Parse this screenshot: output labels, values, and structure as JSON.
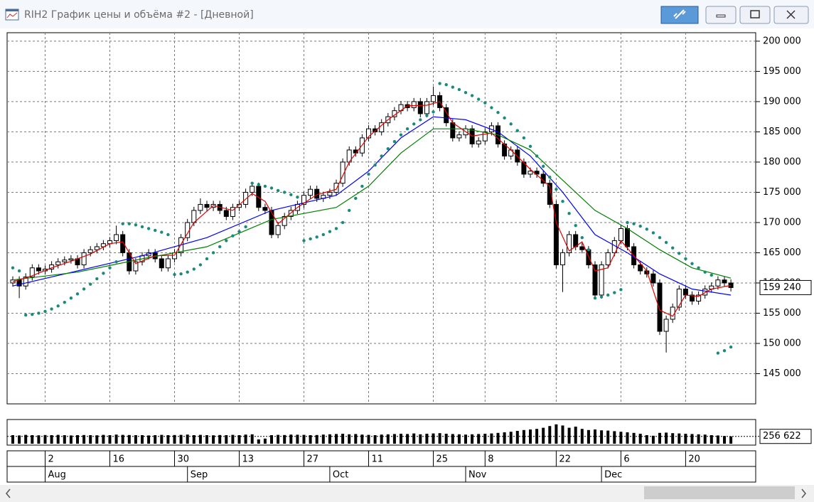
{
  "window": {
    "title": "RIH2 График цены и объёма #2 - [Дневной]"
  },
  "chart_data": {
    "type": "candlestick",
    "categories": [
      null,
      null,
      null,
      null,
      null,
      "2",
      null,
      null,
      null,
      null,
      null,
      null,
      null,
      null,
      null,
      "16",
      null,
      null,
      null,
      null,
      null,
      null,
      null,
      null,
      null,
      "30",
      null,
      null,
      null,
      null,
      null,
      null,
      null,
      null,
      null,
      "13",
      null,
      null,
      null,
      null,
      null,
      null,
      null,
      null,
      null,
      "27",
      null,
      null,
      null,
      null,
      null,
      null,
      null,
      null,
      null,
      "11",
      null,
      null,
      null,
      null,
      null,
      null,
      null,
      null,
      null,
      "25",
      null,
      null,
      null,
      null,
      null,
      null,
      null,
      "8",
      null,
      null,
      null,
      null,
      null,
      null,
      null,
      null,
      null,
      null,
      "22",
      null,
      null,
      null,
      null,
      null,
      null,
      null,
      null,
      null,
      "6",
      null,
      null,
      null,
      null,
      null,
      null,
      null,
      null,
      null,
      "20",
      null,
      null,
      null,
      null,
      null,
      null,
      null
    ],
    "month_ticks": [
      {
        "value": 5,
        "label": "Aug"
      },
      {
        "value": 27,
        "label": "Sep"
      },
      {
        "value": 49,
        "label": "Oct"
      },
      {
        "value": 70,
        "label": "Nov"
      },
      {
        "value": 91,
        "label": "Dec"
      }
    ],
    "open": [
      160000,
      160500,
      159500,
      161000,
      162500,
      162000,
      162300,
      163000,
      163500,
      163800,
      164000,
      163000,
      165000,
      165500,
      166000,
      166500,
      167000,
      168000,
      165000,
      162000,
      163500,
      164500,
      165000,
      164000,
      162500,
      164000,
      165000,
      167500,
      170000,
      172000,
      173000,
      172500,
      173000,
      172000,
      171000,
      172500,
      173000,
      175000,
      176000,
      172500,
      172000,
      168000,
      169500,
      171000,
      172000,
      173000,
      174500,
      175500,
      174000,
      174500,
      175000,
      176500,
      180000,
      182000,
      181500,
      184000,
      185500,
      185000,
      186500,
      187500,
      188500,
      189500,
      189000,
      190000,
      188000,
      190000,
      191000,
      189000,
      186500,
      184000,
      184500,
      185500,
      183000,
      183500,
      185000,
      186000,
      183000,
      181000,
      182000,
      180000,
      178000,
      178500,
      178000,
      176500,
      173000,
      163000,
      165000,
      168000,
      166000,
      165500,
      163000,
      158000,
      163000,
      165000,
      167000,
      169000,
      166000,
      163000,
      162000,
      161500,
      160000,
      152000,
      154000,
      156000,
      159000,
      158000,
      157000,
      158000,
      159000,
      159500,
      160500,
      160000
    ],
    "high": [
      161100,
      161100,
      161600,
      163100,
      163100,
      162900,
      163600,
      164100,
      164400,
      164600,
      164600,
      165600,
      166100,
      166600,
      167100,
      167600,
      169500,
      168600,
      165600,
      164100,
      165100,
      165600,
      165600,
      164600,
      164600,
      165600,
      168100,
      170600,
      172600,
      174000,
      173600,
      173600,
      173600,
      172600,
      173100,
      173600,
      175600,
      176600,
      176600,
      173100,
      172600,
      170100,
      171600,
      172600,
      173600,
      175100,
      176100,
      176100,
      175100,
      175600,
      177100,
      180600,
      182600,
      182600,
      184600,
      186100,
      186100,
      187100,
      188100,
      189100,
      190100,
      190100,
      190600,
      190600,
      190600,
      192500,
      191600,
      189600,
      187100,
      185100,
      186100,
      186100,
      184100,
      185600,
      186600,
      186600,
      183600,
      182600,
      182600,
      180600,
      179100,
      179100,
      178600,
      177100,
      173600,
      165600,
      168600,
      168600,
      166600,
      166100,
      163600,
      163600,
      165600,
      167600,
      169600,
      169600,
      166600,
      163600,
      162600,
      162100,
      160600,
      154600,
      156600,
      159600,
      159600,
      158600,
      158600,
      159600,
      160100,
      161100,
      161100,
      160600
    ],
    "low": [
      159400,
      157500,
      158900,
      160400,
      161400,
      161400,
      161700,
      162400,
      162900,
      163200,
      162400,
      162400,
      164400,
      164900,
      165400,
      165900,
      166400,
      164400,
      161400,
      161400,
      162900,
      163900,
      163400,
      161900,
      161900,
      163400,
      164400,
      166900,
      169400,
      171400,
      171900,
      171900,
      171400,
      170400,
      170400,
      171900,
      172400,
      174400,
      171900,
      171400,
      167400,
      167400,
      168900,
      170400,
      171400,
      172400,
      173900,
      173400,
      173400,
      173900,
      174400,
      175900,
      179400,
      180900,
      180900,
      183400,
      184400,
      184400,
      185900,
      186900,
      187900,
      188400,
      188400,
      187400,
      187400,
      189400,
      188400,
      185900,
      183400,
      183400,
      183900,
      182400,
      182400,
      182900,
      184400,
      182400,
      180400,
      180400,
      179400,
      177400,
      177400,
      177400,
      175900,
      172400,
      162400,
      158500,
      164400,
      165400,
      164900,
      162400,
      157400,
      157400,
      162400,
      164400,
      166400,
      165400,
      162400,
      161400,
      160900,
      159400,
      151400,
      148500,
      153400,
      155400,
      157400,
      156400,
      156400,
      157400,
      158400,
      158900,
      159400,
      158600
    ],
    "close": [
      160500,
      159500,
      161000,
      162500,
      162000,
      162300,
      163000,
      163500,
      163800,
      164000,
      163000,
      165000,
      165500,
      166000,
      166500,
      167000,
      168000,
      165000,
      162000,
      163500,
      164500,
      165000,
      164000,
      162500,
      164000,
      165000,
      167500,
      170000,
      172000,
      173000,
      172500,
      173000,
      172000,
      171000,
      172500,
      173000,
      175000,
      176000,
      172500,
      172000,
      168000,
      169500,
      171000,
      172000,
      173000,
      174500,
      175500,
      174000,
      174500,
      175000,
      176500,
      180000,
      182000,
      181500,
      184000,
      185500,
      185000,
      186500,
      187500,
      188500,
      189500,
      189000,
      190000,
      188000,
      190000,
      191000,
      189000,
      186500,
      184000,
      184500,
      185500,
      183000,
      183500,
      185000,
      186000,
      183000,
      181000,
      182000,
      180000,
      178000,
      178500,
      178000,
      176500,
      173000,
      163000,
      165000,
      168000,
      166000,
      165500,
      163000,
      158000,
      163000,
      165000,
      167000,
      169000,
      166000,
      163000,
      162000,
      161500,
      160000,
      152000,
      154000,
      156000,
      159000,
      158000,
      157000,
      158000,
      159000,
      159500,
      160500,
      160000,
      159240
    ],
    "price_marker": {
      "value": 159240,
      "label": "159 240"
    },
    "lines": [
      {
        "color": "#0000ff",
        "x": [
          0,
          10,
          20,
          30,
          40,
          50,
          55,
          60,
          65,
          70,
          75,
          80,
          85,
          90,
          95,
          100,
          105,
          111
        ],
        "values": [
          159500,
          162000,
          164500,
          167500,
          172000,
          174500,
          178500,
          184000,
          187500,
          187000,
          185000,
          181000,
          175000,
          168000,
          165000,
          161500,
          159000,
          158000
        ]
      },
      {
        "color": "#008000",
        "x": [
          0,
          10,
          20,
          30,
          40,
          50,
          55,
          60,
          65,
          70,
          75,
          80,
          85,
          90,
          95,
          100,
          105,
          111
        ],
        "values": [
          160500,
          161800,
          164000,
          166000,
          170500,
          172500,
          176000,
          181500,
          185500,
          185500,
          184500,
          182000,
          177000,
          172000,
          169000,
          165500,
          162500,
          160800
        ]
      },
      {
        "color": "#e00000",
        "x": [
          0,
          3,
          6,
          9,
          12,
          15,
          17,
          19,
          22,
          25,
          28,
          31,
          34,
          37,
          39,
          41,
          44,
          47,
          50,
          52,
          55,
          58,
          61,
          64,
          66,
          68,
          71,
          74,
          77,
          80,
          83,
          84,
          86,
          88,
          90,
          92,
          94,
          96,
          98,
          100,
          102,
          104,
          106,
          108,
          111
        ],
        "values": [
          160200,
          161200,
          162500,
          163600,
          164800,
          166500,
          166800,
          163200,
          164500,
          164600,
          170000,
          172800,
          172000,
          174800,
          173500,
          169800,
          172500,
          174600,
          175500,
          180000,
          184200,
          187000,
          189300,
          189400,
          190000,
          186500,
          184300,
          184800,
          182000,
          178800,
          176000,
          170000,
          165300,
          166800,
          162000,
          162500,
          167000,
          164500,
          162000,
          155500,
          154500,
          158000,
          157800,
          159000,
          159600
        ]
      }
    ],
    "sar": {
      "color": "#1a8a7a",
      "values": [
        162500,
        162000,
        154700,
        154800,
        155000,
        155300,
        155700,
        156200,
        156800,
        157500,
        158200,
        159000,
        159800,
        160700,
        161600,
        162500,
        163500,
        169800,
        169800,
        169600,
        169300,
        169000,
        168700,
        168400,
        168000,
        161400,
        161500,
        161800,
        162300,
        163000,
        164000,
        165000,
        166000,
        167000,
        167800,
        168500,
        169300,
        176500,
        176300,
        176000,
        175700,
        175300,
        175000,
        174600,
        174200,
        167000,
        167300,
        167600,
        168000,
        168500,
        169000,
        170000,
        172000,
        174000,
        176000,
        178000,
        179500,
        181000,
        182200,
        183400,
        184500,
        185500,
        186300,
        187000,
        187700,
        188300,
        193000,
        192800,
        192400,
        192000,
        191500,
        191000,
        190400,
        189800,
        189000,
        188200,
        187300,
        186300,
        185200,
        184000,
        182600,
        181000,
        179300,
        177500,
        175500,
        173500,
        171500,
        169500,
        167500,
        165500,
        157500,
        157700,
        158000,
        158400,
        158900,
        170000,
        169800,
        169400,
        168900,
        168300,
        167500,
        166700,
        165800,
        164900,
        164000,
        163200,
        162500,
        161800,
        161300,
        148400,
        148800,
        149400
      ]
    },
    "ylim": [
      140000,
      201400
    ],
    "yticks": [
      {
        "value": 145000,
        "label": "145 000"
      },
      {
        "value": 150000,
        "label": "150 000"
      },
      {
        "value": 155000,
        "label": "155 000"
      },
      {
        "value": 160000,
        "label": "160 000"
      },
      {
        "value": 165000,
        "label": "165 000"
      },
      {
        "value": 170000,
        "label": "170 000"
      },
      {
        "value": 175000,
        "label": "175 000"
      },
      {
        "value": 180000,
        "label": "180 000"
      },
      {
        "value": 185000,
        "label": "185 000"
      },
      {
        "value": 190000,
        "label": "190 000"
      },
      {
        "value": 195000,
        "label": "195 000"
      },
      {
        "value": 200000,
        "label": "200 000"
      }
    ],
    "grid": true,
    "volume": [
      300000,
      290000,
      310000,
      300000,
      295000,
      305000,
      300000,
      310000,
      300000,
      290000,
      300000,
      305000,
      300000,
      295000,
      310000,
      300000,
      320000,
      310000,
      305000,
      300000,
      300000,
      290000,
      300000,
      310000,
      300000,
      305000,
      310000,
      320000,
      300000,
      310000,
      300000,
      295000,
      305000,
      300000,
      310000,
      300000,
      320000,
      330000,
      150000,
      180000,
      300000,
      310000,
      305000,
      320000,
      315000,
      310000,
      300000,
      305000,
      320000,
      330000,
      340000,
      350000,
      330000,
      340000,
      320000,
      310000,
      300000,
      320000,
      330000,
      340000,
      350000,
      340000,
      360000,
      330000,
      350000,
      360000,
      370000,
      350000,
      340000,
      330000,
      320000,
      330000,
      340000,
      350000,
      360000,
      380000,
      400000,
      420000,
      450000,
      480000,
      500000,
      520000,
      560000,
      620000,
      680000,
      640000,
      560000,
      600000,
      520000,
      480000,
      500000,
      470000,
      460000,
      440000,
      420000,
      400000,
      380000,
      350000,
      300000,
      280000,
      380000,
      390000,
      370000,
      360000,
      350000,
      340000,
      330000,
      320000,
      300000,
      290000,
      270000,
      256622
    ],
    "volume_color": "#000000",
    "volume_lim": [
      0,
      800000
    ],
    "volume_marker": {
      "value": 256622,
      "label": "256 622"
    }
  }
}
